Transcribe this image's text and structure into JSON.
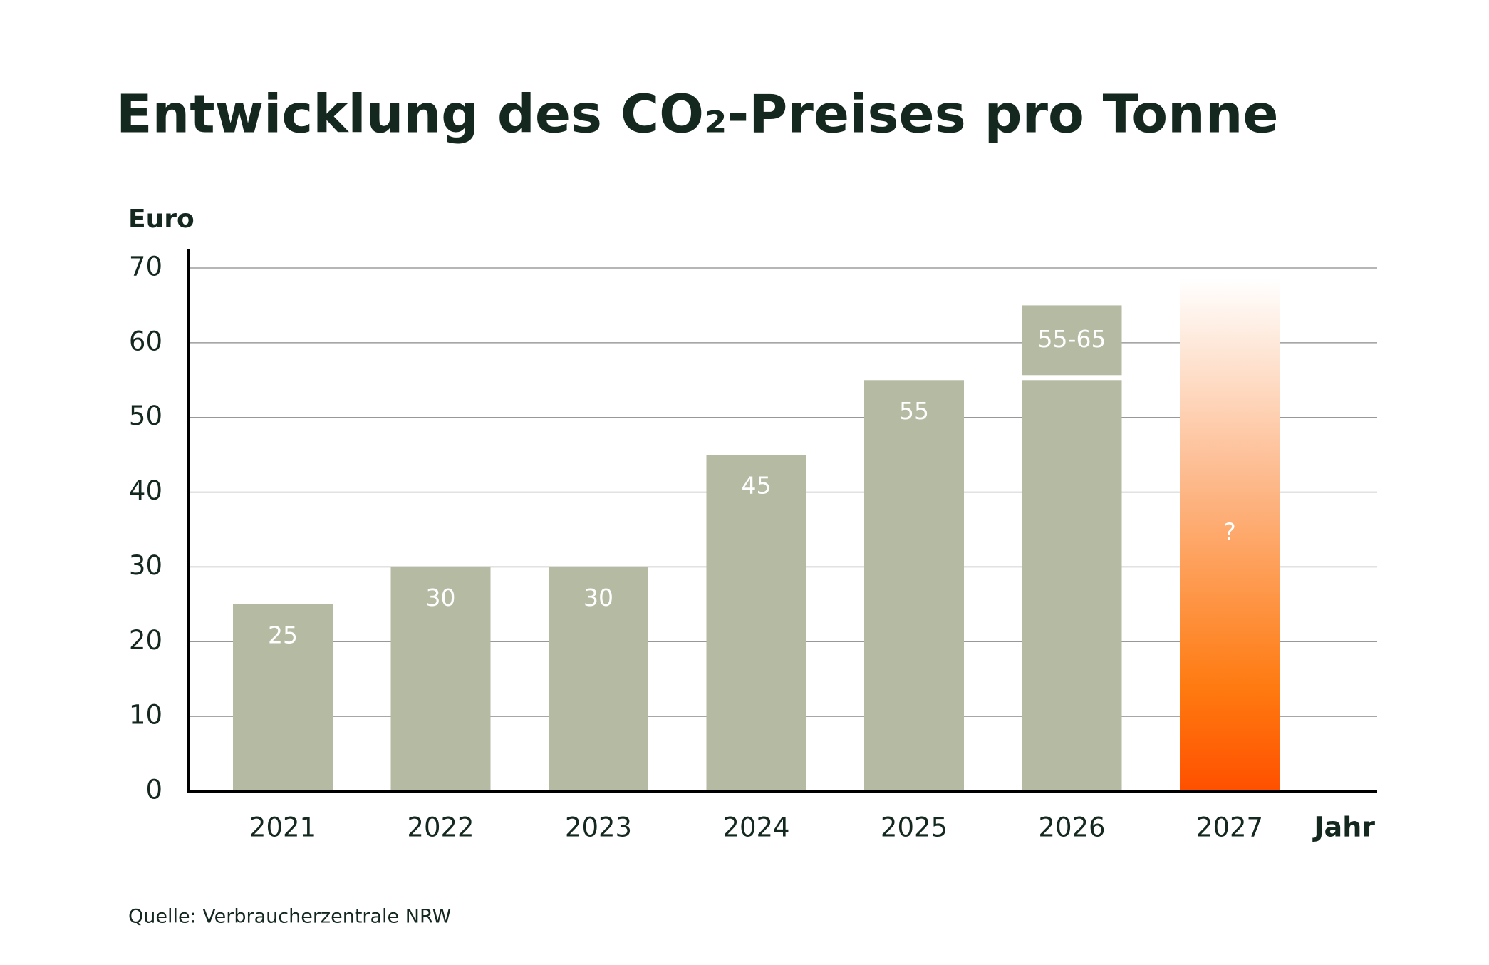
{
  "chart_data": {
    "type": "bar",
    "title": "Entwicklung des CO₂-Preises pro Tonne",
    "y_label": "Euro",
    "x_label": "Jahr",
    "source": "Quelle: Verbraucherzentrale NRW",
    "categories": [
      "2021",
      "2022",
      "2023",
      "2024",
      "2025",
      "2026",
      "2027"
    ],
    "values": [
      25,
      30,
      30,
      45,
      55,
      55,
      null
    ],
    "value_labels": [
      "25",
      "30",
      "30",
      "45",
      "55",
      null,
      "?"
    ],
    "ranges": [
      null,
      null,
      null,
      null,
      null,
      [
        55,
        65
      ],
      null
    ],
    "range_labels": [
      null,
      null,
      null,
      null,
      null,
      "55-65",
      null
    ],
    "color": "#b5baa3",
    "unknown_color": "#ff5a00",
    "ylim": [
      0,
      70
    ],
    "yticks": [
      0,
      10,
      20,
      30,
      40,
      50,
      60,
      70
    ],
    "grid": true
  }
}
